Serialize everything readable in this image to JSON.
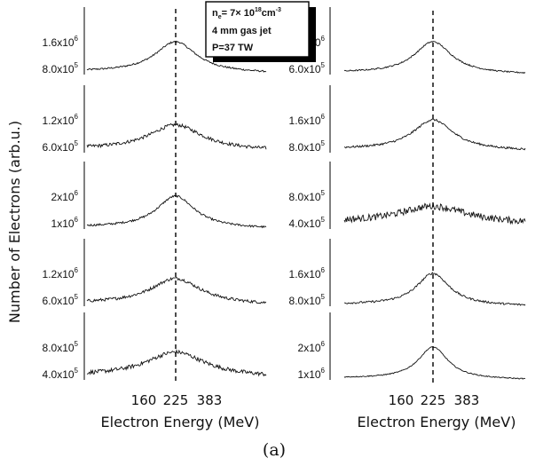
{
  "chart_data": {
    "type": "line",
    "ylabel": "Number of Electrons (arb.u.)",
    "xlabel": "Electron Energy (MeV)",
    "x_ticks": [
      "160",
      "225",
      "383"
    ],
    "x_tick_values": [
      160,
      225,
      383
    ],
    "reference_line": 225,
    "caption": "(a)",
    "annotation": {
      "density_prefix": "n",
      "density_sub": "e",
      "density_value": "= 7× 10",
      "density_exp": "18",
      "density_unit": "cm",
      "density_unit_exp": "-3",
      "line2": "4 mm gas jet",
      "line3": "P=37 TW"
    },
    "columns": [
      {
        "panels": [
          {
            "y_ticks": [
              {
                "base": "1.6x10",
                "exp": "6"
              },
              {
                "base": "8.0x10",
                "exp": "5"
              }
            ],
            "peak": 1.0,
            "width": 0.28,
            "noise": 0.025,
            "base": 0.08
          },
          {
            "y_ticks": [
              {
                "base": "1.2x10",
                "exp": "6"
              },
              {
                "base": "6.0x10",
                "exp": "5"
              }
            ],
            "peak": 0.85,
            "width": 0.36,
            "noise": 0.05,
            "base": 0.1
          },
          {
            "y_ticks": [
              {
                "base": "2x10",
                "exp": "6"
              },
              {
                "base": "1x10",
                "exp": "6"
              }
            ],
            "peak": 1.0,
            "width": 0.26,
            "noise": 0.03,
            "base": 0.05
          },
          {
            "y_ticks": [
              {
                "base": "1.2x10",
                "exp": "6"
              },
              {
                "base": "6.0x10",
                "exp": "5"
              }
            ],
            "peak": 0.85,
            "width": 0.34,
            "noise": 0.045,
            "base": 0.08
          },
          {
            "y_ticks": [
              {
                "base": "8.0x10",
                "exp": "5"
              },
              {
                "base": "4.0x10",
                "exp": "5"
              }
            ],
            "peak": 0.85,
            "width": 0.4,
            "noise": 0.06,
            "base": 0.12
          }
        ]
      },
      {
        "panels": [
          {
            "y_ticks": [
              {
                "base": "1.2x10",
                "exp": "6"
              },
              {
                "base": "6.0x10",
                "exp": "5"
              }
            ],
            "peak": 1.0,
            "width": 0.25,
            "noise": 0.02,
            "base": 0.05
          },
          {
            "y_ticks": [
              {
                "base": "1.6x10",
                "exp": "6"
              },
              {
                "base": "8.0x10",
                "exp": "5"
              }
            ],
            "peak": 1.0,
            "width": 0.27,
            "noise": 0.03,
            "base": 0.1
          },
          {
            "y_ticks": [
              {
                "base": "8.0x10",
                "exp": "5"
              },
              {
                "base": "4.0x10",
                "exp": "5"
              }
            ],
            "peak": 0.7,
            "width": 0.45,
            "noise": 0.1,
            "base": 0.2
          },
          {
            "y_ticks": [
              {
                "base": "1.6x10",
                "exp": "6"
              },
              {
                "base": "8.0x10",
                "exp": "5"
              }
            ],
            "peak": 1.0,
            "width": 0.22,
            "noise": 0.03,
            "base": 0.05
          },
          {
            "y_ticks": [
              {
                "base": "2x10",
                "exp": "6"
              },
              {
                "base": "1x10",
                "exp": "6"
              }
            ],
            "peak": 1.0,
            "width": 0.2,
            "noise": 0.015,
            "base": 0.05
          }
        ]
      }
    ]
  }
}
